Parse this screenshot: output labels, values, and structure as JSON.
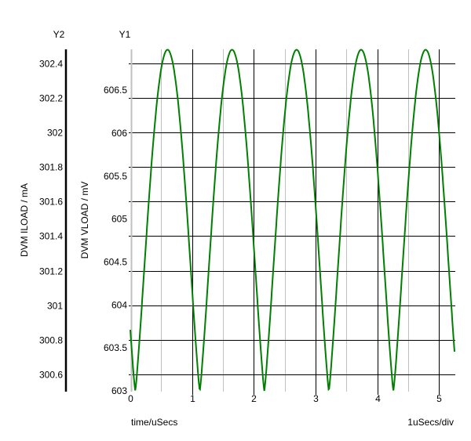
{
  "chart_data": {
    "type": "line",
    "xlabel": "time/uSecs",
    "x_scale_note": "1uSecs/div",
    "xlim": [
      0,
      5.25
    ],
    "xticks": [
      "0",
      "1",
      "2",
      "3",
      "4",
      "5"
    ],
    "y1": {
      "axis_title": "Y1",
      "label": "DVM VLOAD / mV",
      "ylim": [
        603,
        607
      ],
      "ticks": [
        "603",
        "603.5",
        "604",
        "604.5",
        "605",
        "605.5",
        "606",
        "606.5"
      ]
    },
    "y2": {
      "axis_title": "Y2",
      "label": "DVM ILOAD / mA",
      "ylim": [
        300.5,
        302.48
      ],
      "ticks": [
        "300.6",
        "300.8",
        "301",
        "301.2",
        "301.4",
        "301.6",
        "301.8",
        "302",
        "302.2",
        "302.4"
      ]
    },
    "grid": true,
    "series": [
      {
        "axis": "y1",
        "color": "#008000",
        "waveform": "rectified-sine",
        "min": 603.0,
        "max": 606.97,
        "period_us": 1.045,
        "first_trough_us": 0.08,
        "troughs_us": [
          0.08,
          1.12,
          2.165,
          3.21,
          4.25
        ],
        "peaks_us": [
          0.6,
          1.645,
          2.69,
          3.73,
          4.775
        ]
      }
    ]
  },
  "colors": {
    "trace": "#008000",
    "grid": "#000000",
    "minor_grid": "#c0c0c0"
  }
}
